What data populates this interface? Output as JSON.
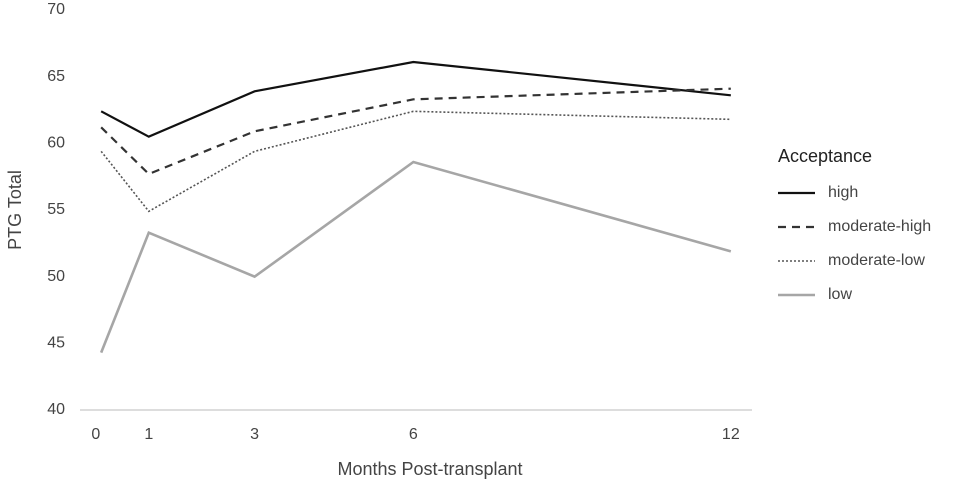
{
  "chart_data": {
    "type": "line",
    "xlabel": "Months Post-transplant",
    "ylabel": "PTG Total",
    "legend_title": "Acceptance",
    "legend": "right",
    "xlim": [
      -0.3,
      12.4
    ],
    "xticks": [
      0,
      1,
      3,
      6,
      12
    ],
    "ylim": [
      40,
      70
    ],
    "yticks": [
      40,
      45,
      50,
      55,
      60,
      65,
      70
    ],
    "x": [
      0.1,
      1,
      3,
      6,
      12
    ],
    "series": [
      {
        "name": "high",
        "color": "#111111",
        "dash": "none",
        "width": 2.2,
        "values": [
          62.4,
          60.5,
          63.9,
          66.1,
          63.6
        ]
      },
      {
        "name": "moderate-high",
        "color": "#333333",
        "dash": "8,6",
        "width": 2.2,
        "values": [
          61.2,
          57.7,
          60.9,
          63.3,
          64.1
        ]
      },
      {
        "name": "moderate-low",
        "color": "#555555",
        "dash": "2,2",
        "width": 1.6,
        "values": [
          59.4,
          54.9,
          59.4,
          62.4,
          61.8
        ]
      },
      {
        "name": "low",
        "color": "#a6a6a6",
        "dash": "none",
        "width": 2.6,
        "values": [
          44.3,
          53.3,
          50.0,
          58.6,
          51.9
        ]
      }
    ]
  }
}
